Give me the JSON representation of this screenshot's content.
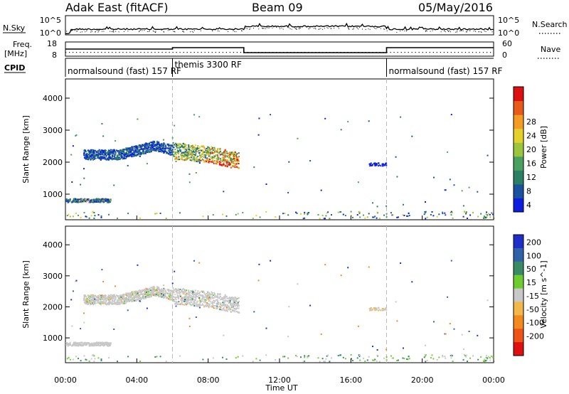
{
  "chart_data": {
    "type": "heatmap",
    "header": {
      "station_title": "Adak East (fitACF)",
      "beam_title": "Beam 09",
      "date_title": "05/May/2016"
    },
    "top_panel_labels": {
      "nsky_label": "N.Sky",
      "nsky_ticks": [
        "10^5",
        "10^0"
      ],
      "nsearch_label": "N.Search",
      "nsearch_ticks": [
        "10^5",
        "10^0"
      ],
      "freq_label": "Freq.",
      "freq_unit": "[MHz]",
      "freq_ticks": [
        "18",
        "8"
      ],
      "nave_label": "Nave",
      "nave_ticks": [
        "60",
        "0"
      ],
      "cpid_label": "CPID"
    },
    "x_axis": {
      "label": "Time UT",
      "ticks": [
        "00:00",
        "04:00",
        "08:00",
        "12:00",
        "16:00",
        "20:00",
        "00:00"
      ],
      "range_hours": [
        0,
        24
      ]
    },
    "y_axis": {
      "label": "Slant Range [km]",
      "ticks": [
        1000,
        2000,
        3000,
        4000
      ],
      "range": [
        200,
        4600
      ]
    },
    "mode_changes_hours": [
      6,
      18
    ],
    "cpid_modes": [
      {
        "label": "normalsound (fast)  157 RF",
        "start": 0
      },
      {
        "label": "themis 3300 RF",
        "start": 6
      },
      {
        "label": "normalsound (fast)  157 RF",
        "start": 18
      }
    ],
    "frequency_mhz_steps": [
      {
        "start": 0,
        "end": 6,
        "value": 13
      },
      {
        "start": 6,
        "end": 10,
        "value": 14
      },
      {
        "start": 10,
        "end": 18,
        "value": 10.5
      },
      {
        "start": 18,
        "end": 24,
        "value": 14
      }
    ],
    "power_colorbar": {
      "label": "Power [dB]",
      "ticks": [
        4,
        8,
        12,
        16,
        20,
        24,
        28
      ],
      "colors": [
        "#0c1fe0",
        "#1a52a0",
        "#2b7f65",
        "#4aa060",
        "#9bc53d",
        "#e3d02b",
        "#f39b22",
        "#e85a1a",
        "#dc1010"
      ]
    },
    "velocity_colorbar": {
      "label": "Velocity [m s^-1]",
      "ticks": [
        "200",
        "100",
        "50",
        "15",
        "-15",
        "-50",
        "-100",
        "-200"
      ],
      "colors": [
        "#1f2ec8",
        "#2f62a8",
        "#3a8a68",
        "#6fcc2e",
        "#c8c8c8",
        "#f2b84a",
        "#f38a1f",
        "#ee5418",
        "#de1010"
      ]
    },
    "echo_bands": [
      {
        "name": "near-range",
        "start": 0,
        "end": 2.5,
        "center_km": 820,
        "width_km": 120
      },
      {
        "name": "main",
        "start": 1.0,
        "end": 9.7,
        "center_km": 2250,
        "width_km": 300
      },
      {
        "name": "small-patch",
        "start": 17.0,
        "end": 18.0,
        "center_km": 1950,
        "width_km": 80
      }
    ]
  }
}
